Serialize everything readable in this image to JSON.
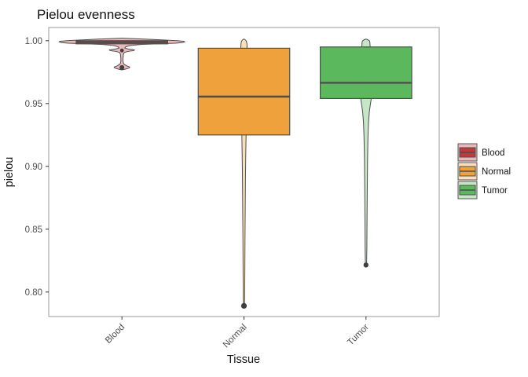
{
  "chart_data": {
    "type": "violin-boxplot",
    "title": "Pielou evenness",
    "xlabel": "Tissue",
    "ylabel": "pielou",
    "categories": [
      "Blood",
      "Normal",
      "Tumor"
    ],
    "ylim": [
      0.7805,
      1.0105
    ],
    "grid": false,
    "legend_position": "right",
    "yticks": [
      {
        "value": 1.0,
        "label": "1.00"
      },
      {
        "value": 0.95,
        "label": "0.95"
      },
      {
        "value": 0.9,
        "label": "0.90"
      },
      {
        "value": 0.85,
        "label": "0.85"
      },
      {
        "value": 0.8,
        "label": "0.80"
      }
    ],
    "colors": {
      "outline": "#4e4e4e",
      "outlier": "#3f3f3f",
      "panel_border": "#9a9a9a",
      "tick": "#333333"
    },
    "groups": [
      {
        "name": "Blood",
        "fill": "#C0393B",
        "fill_alpha": "rgba(192,57,59,0.35)",
        "box": {
          "q1": 0.9975,
          "median": 0.9988,
          "q3": 1.0
        },
        "outliers": [
          {
            "value": 0.9922,
            "r": 2.4
          },
          {
            "value": 0.9787,
            "r": 3.0
          }
        ],
        "violin": [
          [
            1.002,
            1
          ],
          [
            1.001,
            40
          ],
          [
            1.0,
            70
          ],
          [
            0.9995,
            79
          ],
          [
            0.999,
            80
          ],
          [
            0.9985,
            77
          ],
          [
            0.998,
            68
          ],
          [
            0.9975,
            46
          ],
          [
            0.997,
            24
          ],
          [
            0.9962,
            11
          ],
          [
            0.9952,
            5
          ],
          [
            0.9942,
            3.5
          ],
          [
            0.9934,
            8
          ],
          [
            0.9927,
            16
          ],
          [
            0.9921,
            15
          ],
          [
            0.9914,
            7
          ],
          [
            0.9906,
            3
          ],
          [
            0.9893,
            2
          ],
          [
            0.9875,
            1.6
          ],
          [
            0.9855,
            1.4
          ],
          [
            0.9835,
            1.4
          ],
          [
            0.9815,
            2.2
          ],
          [
            0.98,
            6
          ],
          [
            0.979,
            10
          ],
          [
            0.9782,
            9
          ],
          [
            0.9773,
            4
          ],
          [
            0.9768,
            1
          ]
        ]
      },
      {
        "name": "Normal",
        "fill": "#EFA23B",
        "fill_alpha": "rgba(239,162,59,0.35)",
        "box": {
          "q1": 0.925,
          "median": 0.9555,
          "q3": 0.994
        },
        "outliers": [
          {
            "value": 0.789,
            "r": 3.6
          }
        ],
        "violin": [
          [
            1.0012,
            0.6
          ],
          [
            1.0005,
            2
          ],
          [
            0.9995,
            3.2
          ],
          [
            0.9975,
            3.8
          ],
          [
            0.994,
            4
          ],
          [
            0.988,
            4
          ],
          [
            0.98,
            4
          ],
          [
            0.97,
            3.9
          ],
          [
            0.96,
            3.7
          ],
          [
            0.95,
            3.4
          ],
          [
            0.938,
            3
          ],
          [
            0.925,
            2.7
          ],
          [
            0.91,
            2.3
          ],
          [
            0.89,
            1.9
          ],
          [
            0.865,
            1.6
          ],
          [
            0.84,
            1.3
          ],
          [
            0.815,
            1.1
          ],
          [
            0.795,
            0.9
          ],
          [
            0.789,
            0.5
          ]
        ]
      },
      {
        "name": "Tumor",
        "fill": "#5CB85C",
        "fill_alpha": "rgba(92,184,92,0.35)",
        "box": {
          "q1": 0.954,
          "median": 0.9665,
          "q3": 0.995
        },
        "outliers": [
          {
            "value": 0.8215,
            "r": 3.2
          }
        ],
        "violin": [
          [
            1.0012,
            0.6
          ],
          [
            1.0005,
            3
          ],
          [
            0.9998,
            4.5
          ],
          [
            0.9985,
            5
          ],
          [
            0.996,
            5.2
          ],
          [
            0.993,
            5.6
          ],
          [
            0.989,
            6
          ],
          [
            0.984,
            6.3
          ],
          [
            0.978,
            6.5
          ],
          [
            0.972,
            6.6
          ],
          [
            0.966,
            6.7
          ],
          [
            0.96,
            6.8
          ],
          [
            0.956,
            7
          ],
          [
            0.953,
            6.5
          ],
          [
            0.949,
            5.5
          ],
          [
            0.943,
            4.2
          ],
          [
            0.935,
            3.2
          ],
          [
            0.923,
            2.5
          ],
          [
            0.905,
            2
          ],
          [
            0.88,
            1.6
          ],
          [
            0.855,
            1.3
          ],
          [
            0.835,
            1.1
          ],
          [
            0.823,
            0.8
          ],
          [
            0.8215,
            0.4
          ]
        ]
      }
    ]
  }
}
